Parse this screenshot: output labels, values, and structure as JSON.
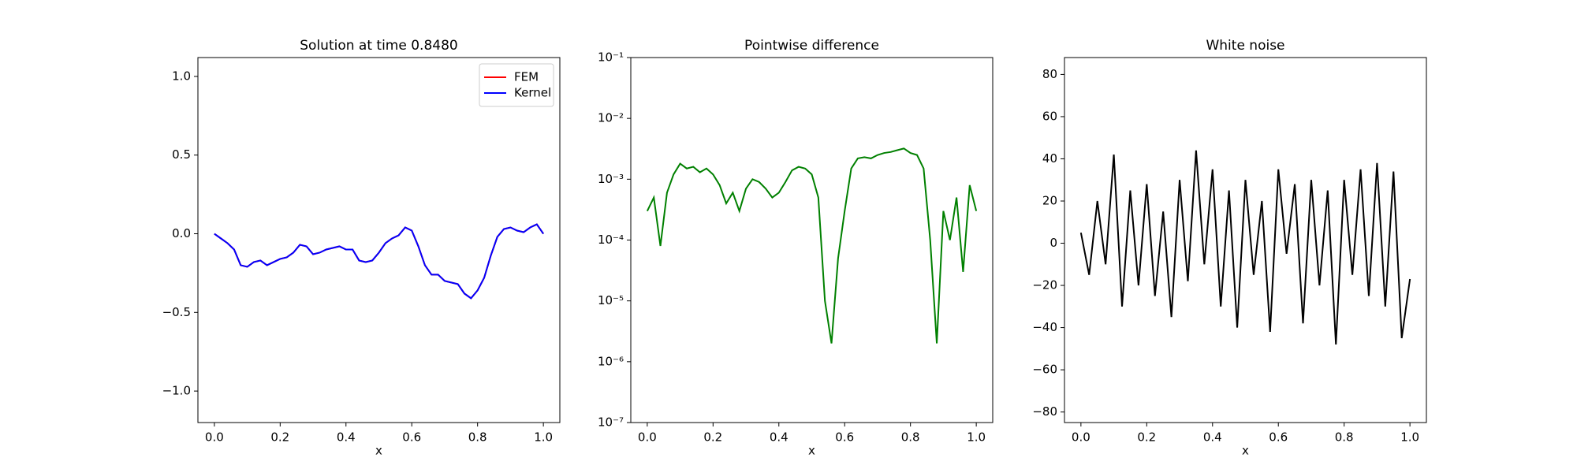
{
  "chart_data": [
    {
      "type": "line",
      "title": "Solution at time 0.8480",
      "x_label": "x",
      "x": [
        0,
        0.02,
        0.04,
        0.06,
        0.08,
        0.1,
        0.12,
        0.14,
        0.16,
        0.18,
        0.2,
        0.22,
        0.24,
        0.26,
        0.28,
        0.3,
        0.32,
        0.34,
        0.36,
        0.38,
        0.4,
        0.42,
        0.44,
        0.46,
        0.48,
        0.5,
        0.52,
        0.54,
        0.56,
        0.58,
        0.6,
        0.62,
        0.64,
        0.66,
        0.68,
        0.7,
        0.72,
        0.74,
        0.76,
        0.78,
        0.8,
        0.82,
        0.84,
        0.86,
        0.88,
        0.9,
        0.92,
        0.94,
        0.96,
        0.98,
        1.0
      ],
      "series": [
        {
          "name": "FEM",
          "color": "#ff0000",
          "values": [
            0,
            -0.03,
            -0.06,
            -0.1,
            -0.2,
            -0.21,
            -0.18,
            -0.17,
            -0.2,
            -0.18,
            -0.16,
            -0.15,
            -0.12,
            -0.07,
            -0.08,
            -0.13,
            -0.12,
            -0.1,
            -0.09,
            -0.08,
            -0.1,
            -0.1,
            -0.17,
            -0.18,
            -0.17,
            -0.12,
            -0.06,
            -0.03,
            -0.01,
            0.04,
            0.02,
            -0.08,
            -0.2,
            -0.26,
            -0.26,
            -0.3,
            -0.31,
            -0.32,
            -0.38,
            -0.41,
            -0.36,
            -0.28,
            -0.14,
            -0.02,
            0.03,
            0.04,
            0.02,
            0.01,
            0.04,
            0.06,
            0
          ]
        },
        {
          "name": "Kernel",
          "color": "#0000ff",
          "values": [
            0,
            -0.03,
            -0.06,
            -0.1,
            -0.2,
            -0.21,
            -0.18,
            -0.17,
            -0.2,
            -0.18,
            -0.16,
            -0.15,
            -0.12,
            -0.07,
            -0.08,
            -0.13,
            -0.12,
            -0.1,
            -0.09,
            -0.08,
            -0.1,
            -0.1,
            -0.17,
            -0.18,
            -0.17,
            -0.12,
            -0.06,
            -0.03,
            -0.01,
            0.04,
            0.02,
            -0.08,
            -0.2,
            -0.26,
            -0.26,
            -0.3,
            -0.31,
            -0.32,
            -0.38,
            -0.41,
            -0.36,
            -0.28,
            -0.14,
            -0.02,
            0.03,
            0.04,
            0.02,
            0.01,
            0.04,
            0.06,
            0
          ]
        }
      ],
      "legend": "upper right",
      "xlim": [
        -0.05,
        1.05
      ],
      "xticks": [
        {
          "value": 0,
          "label": "0.0"
        },
        {
          "value": 0.2,
          "label": "0.2"
        },
        {
          "value": 0.4,
          "label": "0.4"
        },
        {
          "value": 0.6,
          "label": "0.6"
        },
        {
          "value": 0.8,
          "label": "0.8"
        },
        {
          "value": 1,
          "label": "1.0"
        }
      ],
      "ylim": [
        -1.2,
        1.12
      ],
      "yticks": [
        {
          "value": -1,
          "label": "−1.0"
        },
        {
          "value": -0.5,
          "label": "−0.5"
        },
        {
          "value": 0,
          "label": "0.0"
        },
        {
          "value": 0.5,
          "label": "0.5"
        },
        {
          "value": 1,
          "label": "1.0"
        }
      ]
    },
    {
      "type": "line",
      "title": "Pointwise difference",
      "x_label": "x",
      "yscale": "log",
      "color": "#008000",
      "x": [
        0,
        0.02,
        0.04,
        0.06,
        0.08,
        0.1,
        0.12,
        0.14,
        0.16,
        0.18,
        0.2,
        0.22,
        0.24,
        0.26,
        0.28,
        0.3,
        0.32,
        0.34,
        0.36,
        0.38,
        0.4,
        0.42,
        0.44,
        0.46,
        0.48,
        0.5,
        0.52,
        0.54,
        0.56,
        0.58,
        0.6,
        0.62,
        0.64,
        0.66,
        0.68,
        0.7,
        0.72,
        0.74,
        0.76,
        0.78,
        0.8,
        0.82,
        0.84,
        0.86,
        0.88,
        0.9,
        0.92,
        0.94,
        0.96,
        0.98,
        1.0
      ],
      "values": [
        0.0003,
        0.0005,
        8e-05,
        0.0006,
        0.0012,
        0.0018,
        0.0015,
        0.0016,
        0.0013,
        0.0015,
        0.0012,
        0.0008,
        0.0004,
        0.0006,
        0.0003,
        0.0007,
        0.001,
        0.0009,
        0.0007,
        0.0005,
        0.0006,
        0.0009,
        0.0014,
        0.0016,
        0.0015,
        0.0012,
        0.0005,
        1e-05,
        2e-06,
        5e-05,
        0.0003,
        0.0015,
        0.0022,
        0.0023,
        0.0022,
        0.0025,
        0.0027,
        0.0028,
        0.003,
        0.0032,
        0.0027,
        0.0025,
        0.0015,
        0.0001,
        2e-06,
        0.0003,
        0.0001,
        0.0005,
        3e-05,
        0.0008,
        0.0003
      ],
      "xlim": [
        -0.05,
        1.05
      ],
      "xticks": [
        {
          "value": 0,
          "label": "0.0"
        },
        {
          "value": 0.2,
          "label": "0.2"
        },
        {
          "value": 0.4,
          "label": "0.4"
        },
        {
          "value": 0.6,
          "label": "0.6"
        },
        {
          "value": 0.8,
          "label": "0.8"
        },
        {
          "value": 1,
          "label": "1.0"
        }
      ],
      "ylim": [
        1e-07,
        0.1
      ],
      "yticks": [
        {
          "value": 1e-07,
          "label": "10⁻⁷"
        },
        {
          "value": 1e-06,
          "label": "10⁻⁶"
        },
        {
          "value": 1e-05,
          "label": "10⁻⁵"
        },
        {
          "value": 0.0001,
          "label": "10⁻⁴"
        },
        {
          "value": 0.001,
          "label": "10⁻³"
        },
        {
          "value": 0.01,
          "label": "10⁻²"
        },
        {
          "value": 0.1,
          "label": "10⁻¹"
        }
      ]
    },
    {
      "type": "line",
      "title": "White noise",
      "x_label": "x",
      "color": "#000000",
      "x": [
        0,
        0.025,
        0.05,
        0.075,
        0.1,
        0.125,
        0.15,
        0.175,
        0.2,
        0.225,
        0.25,
        0.275,
        0.3,
        0.325,
        0.35,
        0.375,
        0.4,
        0.425,
        0.45,
        0.475,
        0.5,
        0.525,
        0.55,
        0.575,
        0.6,
        0.625,
        0.65,
        0.675,
        0.7,
        0.725,
        0.75,
        0.775,
        0.8,
        0.825,
        0.85,
        0.875,
        0.9,
        0.925,
        0.95,
        0.975,
        1.0
      ],
      "values": [
        5,
        -15,
        20,
        -10,
        42,
        -30,
        25,
        -20,
        28,
        -25,
        15,
        -35,
        30,
        -18,
        44,
        -10,
        35,
        -30,
        25,
        -40,
        30,
        -15,
        20,
        -42,
        35,
        -5,
        28,
        -38,
        30,
        -20,
        25,
        -48,
        30,
        -15,
        35,
        -25,
        38,
        -30,
        34,
        -45,
        -17
      ],
      "xlim": [
        -0.05,
        1.05
      ],
      "xticks": [
        {
          "value": 0,
          "label": "0.0"
        },
        {
          "value": 0.2,
          "label": "0.2"
        },
        {
          "value": 0.4,
          "label": "0.4"
        },
        {
          "value": 0.6,
          "label": "0.6"
        },
        {
          "value": 0.8,
          "label": "0.8"
        },
        {
          "value": 1,
          "label": "1.0"
        }
      ],
      "ylim": [
        -85,
        88
      ],
      "yticks": [
        {
          "value": -80,
          "label": "−80"
        },
        {
          "value": -60,
          "label": "−60"
        },
        {
          "value": -40,
          "label": "−40"
        },
        {
          "value": -20,
          "label": "−20"
        },
        0,
        20,
        40,
        60,
        80
      ]
    }
  ]
}
